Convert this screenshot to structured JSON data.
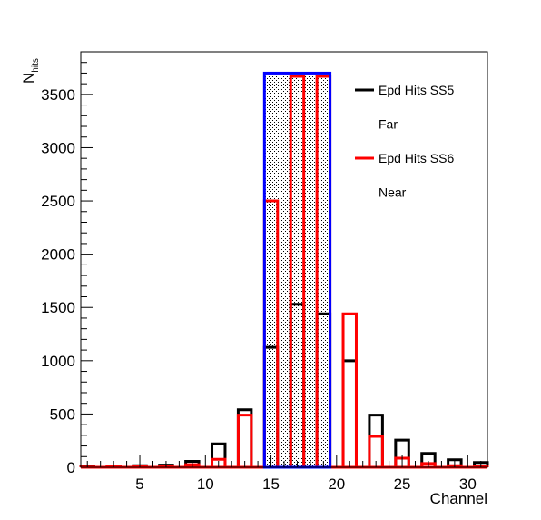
{
  "chart_data": {
    "type": "bar",
    "title": "",
    "xlabel": "Channel",
    "ylabel_main": "N",
    "ylabel_sub": "hits",
    "xlim": [
      0.5,
      31.5
    ],
    "ylim": [
      0,
      3900
    ],
    "xticks": [
      5,
      10,
      15,
      20,
      25,
      30
    ],
    "yticks": [
      0,
      500,
      1000,
      1500,
      2000,
      2500,
      3000,
      3500
    ],
    "bin_width": 1,
    "channels": [
      1,
      3,
      5,
      7,
      9,
      11,
      13,
      15,
      17,
      19,
      21,
      23,
      25,
      27,
      29,
      31
    ],
    "series": [
      {
        "name": "Epd Hits SS5",
        "color": "#000000",
        "values": [
          5,
          10,
          15,
          20,
          55,
          220,
          540,
          1125,
          1530,
          1440,
          1000,
          490,
          255,
          130,
          70,
          45
        ]
      },
      {
        "name": "Epd Hits SS6",
        "color": "#ff0000",
        "values": [
          2,
          4,
          6,
          8,
          25,
          75,
          490,
          2500,
          3670,
          3670,
          1440,
          290,
          85,
          35,
          15,
          10
        ]
      }
    ],
    "highlight_region": {
      "x_start": 14.5,
      "x_end": 19.5,
      "y_top": 3700,
      "color": "#0000ff",
      "fill": "stipple"
    },
    "legend": {
      "placement": "top-right",
      "entries": [
        {
          "label": "Epd Hits SS5",
          "color": "#000000"
        },
        {
          "label": "Far",
          "color": ""
        },
        {
          "label": "Epd Hits SS6",
          "color": "#ff0000"
        },
        {
          "label": "Near",
          "color": ""
        }
      ]
    },
    "grid": false
  }
}
